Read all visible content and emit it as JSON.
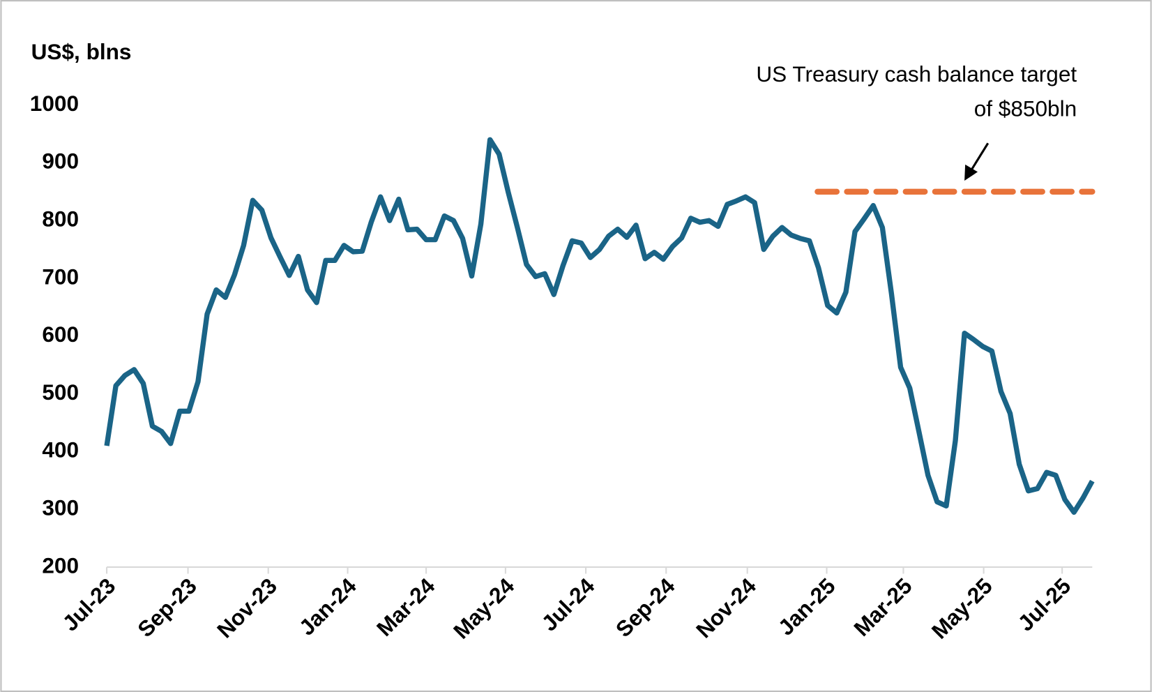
{
  "chart_data": {
    "type": "line",
    "y_label": "US$, blns",
    "x": [
      0,
      1,
      2,
      3,
      4,
      5,
      6,
      7,
      8,
      9,
      10,
      11,
      12,
      13,
      14,
      15,
      16,
      17,
      18,
      19,
      20,
      21,
      22,
      23,
      24,
      25,
      26,
      27,
      28,
      29,
      30,
      31,
      32,
      33,
      34,
      35,
      36,
      37,
      38,
      39,
      40,
      41,
      42,
      43,
      44,
      45,
      46,
      47,
      48,
      49,
      50,
      51,
      52,
      53,
      54,
      55,
      56,
      57,
      58,
      59,
      60,
      61,
      62,
      63,
      64,
      65,
      66,
      67,
      68,
      69,
      70,
      71,
      72,
      73,
      74,
      75,
      76,
      77,
      78,
      79,
      80,
      81,
      82,
      83,
      84,
      85,
      86,
      87,
      88,
      89,
      90,
      91,
      92,
      93,
      94,
      95,
      96,
      97,
      98,
      99,
      100,
      101,
      102,
      103,
      104,
      105,
      106,
      107,
      108
    ],
    "series": [
      {
        "name": "US Treasury cash balance",
        "color": "#1a6487",
        "values": [
          410,
          514,
          532,
          542,
          518,
          444,
          435,
          414,
          470,
          470,
          521,
          638,
          680,
          667,
          706,
          757,
          835,
          818,
          770,
          737,
          705,
          738,
          680,
          658,
          731,
          731,
          757,
          746,
          747,
          798,
          841,
          800,
          837,
          784,
          785,
          767,
          767,
          808,
          800,
          769,
          704,
          794,
          940,
          915,
          849,
          788,
          724,
          703,
          708,
          672,
          722,
          765,
          761,
          736,
          750,
          773,
          785,
          771,
          792,
          734,
          745,
          733,
          755,
          770,
          804,
          797,
          800,
          790,
          828,
          834,
          841,
          831,
          750,
          773,
          788,
          775,
          769,
          765,
          718,
          653,
          640,
          676,
          781,
          803,
          826,
          788,
          673,
          546,
          510,
          435,
          359,
          313,
          306,
          419,
          605,
          594,
          582,
          574,
          504,
          466,
          378,
          332,
          336,
          364,
          359,
          317,
          295,
          320,
          349
        ]
      }
    ],
    "xlim": [
      0,
      108
    ],
    "xticks": [
      {
        "value": 0,
        "label": "Jul-23"
      },
      {
        "value": 8.9,
        "label": "Sep-23"
      },
      {
        "value": 17.7,
        "label": "Nov-23"
      },
      {
        "value": 26.4,
        "label": "Jan-24"
      },
      {
        "value": 35.0,
        "label": "Mar-24"
      },
      {
        "value": 43.7,
        "label": "May-24"
      },
      {
        "value": 52.5,
        "label": "Jul-24"
      },
      {
        "value": 61.3,
        "label": "Sep-24"
      },
      {
        "value": 70.2,
        "label": "Nov-24"
      },
      {
        "value": 78.9,
        "label": "Jan-25"
      },
      {
        "value": 87.3,
        "label": "Mar-25"
      },
      {
        "value": 96.1,
        "label": "May-25"
      },
      {
        "value": 104.7,
        "label": "Jul-25"
      }
    ],
    "ylim": [
      200,
      1000
    ],
    "yticks": [
      200,
      300,
      400,
      500,
      600,
      700,
      800,
      900,
      1000
    ],
    "grid": false,
    "target": {
      "y": 850,
      "x": [
        77.9,
        108
      ],
      "color": "#e8733a",
      "text": [
        "US Treasury cash balance target",
        "of $850bln"
      ]
    }
  }
}
